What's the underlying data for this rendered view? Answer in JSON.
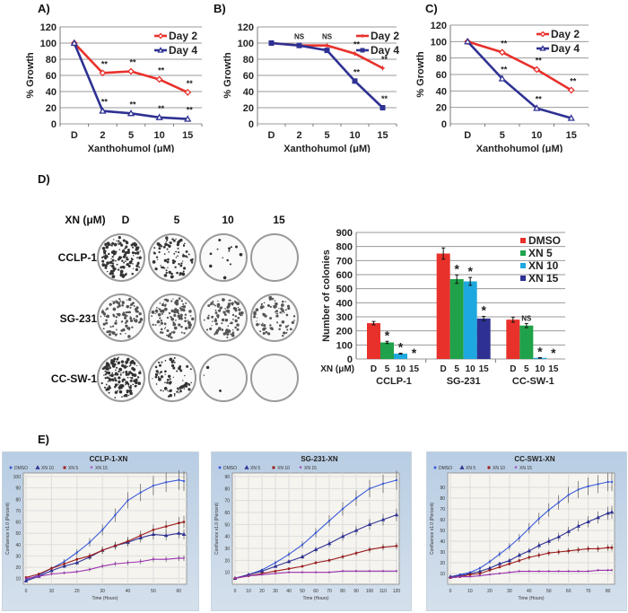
{
  "panel_labels": {
    "A": "A)",
    "B": "B)",
    "C": "C)",
    "D": "D)",
    "E": "E)"
  },
  "chart_data": [
    {
      "id": "A",
      "type": "line",
      "title": "",
      "xlabel": "Xanthohumol (μM)",
      "ylabel": "% Growth",
      "categories": [
        "D",
        "2",
        "5",
        "10",
        "15"
      ],
      "ylim": [
        0,
        120
      ],
      "yticks": [
        0,
        20,
        40,
        60,
        80,
        100,
        120
      ],
      "grid": true,
      "legend": "top-right",
      "series": [
        {
          "name": "Day 2",
          "color": "#e8312b",
          "marker": "diamond",
          "values": [
            100,
            63,
            65,
            55,
            39
          ],
          "annotations": [
            "",
            "**",
            "**",
            "**",
            "**"
          ]
        },
        {
          "name": "Day 4",
          "color": "#2e3192",
          "marker": "triangle",
          "values": [
            100,
            16,
            13,
            8,
            6
          ],
          "annotations": [
            "",
            "**",
            "**",
            "**",
            "**"
          ]
        }
      ]
    },
    {
      "id": "B",
      "type": "line",
      "title": "",
      "xlabel": "Xanthohumol (μM)",
      "ylabel": "% Growth",
      "categories": [
        "D",
        "2",
        "5",
        "10",
        "15"
      ],
      "ylim": [
        0,
        120
      ],
      "yticks": [
        0,
        20,
        40,
        60,
        80,
        100,
        120
      ],
      "grid": true,
      "legend": "top-right",
      "series": [
        {
          "name": "Day 2",
          "color": "#e8312b",
          "marker": "star",
          "values": [
            100,
            97,
            97,
            87,
            69
          ],
          "annotations": [
            "",
            "NS",
            "NS",
            "**",
            "**"
          ]
        },
        {
          "name": "Day 4",
          "color": "#2e3192",
          "marker": "square",
          "values": [
            100,
            97,
            91,
            53,
            20
          ],
          "annotations": [
            "",
            "",
            "",
            "**",
            "**"
          ]
        }
      ]
    },
    {
      "id": "C",
      "type": "line",
      "title": "",
      "xlabel": "Xanthohumol (μM)",
      "ylabel": "% Growth",
      "categories": [
        "D",
        "5",
        "10",
        "15"
      ],
      "ylim": [
        0,
        120
      ],
      "yticks": [
        0,
        20,
        40,
        60,
        80,
        100,
        120
      ],
      "grid": true,
      "legend": "top-right",
      "series": [
        {
          "name": "Day 2",
          "color": "#e8312b",
          "marker": "diamond",
          "values": [
            100,
            87,
            66,
            41
          ],
          "annotations": [
            "",
            "**",
            "**",
            "**"
          ]
        },
        {
          "name": "Day 4",
          "color": "#2e3192",
          "marker": "triangle",
          "values": [
            100,
            55,
            19,
            7
          ],
          "annotations": [
            "",
            "**",
            "**",
            ""
          ]
        }
      ]
    },
    {
      "id": "D-bar",
      "type": "bar",
      "title": "",
      "xlabel": "XN (μM)",
      "ylabel": "Number of colonies",
      "groups": [
        "CCLP-1",
        "SG-231",
        "CC-SW-1"
      ],
      "categories": [
        "D",
        "5",
        "10",
        "15"
      ],
      "ylim": [
        0,
        900
      ],
      "yticks": [
        0,
        100,
        200,
        300,
        400,
        500,
        600,
        700,
        800,
        900
      ],
      "grid": true,
      "legend": "top-right",
      "series": [
        {
          "name": "DMSO",
          "color": "#e8312b",
          "values": [
            255,
            750,
            280
          ],
          "errors": [
            12,
            40,
            18
          ],
          "annotations": [
            "",
            "",
            ""
          ]
        },
        {
          "name": "XN 5",
          "color": "#1fa24a",
          "values": [
            118,
            568,
            238
          ],
          "errors": [
            8,
            30,
            15
          ],
          "annotations": [
            "*",
            "*",
            "NS"
          ]
        },
        {
          "name": "XN 10",
          "color": "#1ea8e0",
          "values": [
            38,
            552,
            8
          ],
          "errors": [
            3,
            28,
            2
          ],
          "annotations": [
            "*",
            "*",
            "*"
          ]
        },
        {
          "name": "XN 15",
          "color": "#2e3192",
          "values": [
            0,
            288,
            0
          ],
          "errors": [
            0,
            15,
            0
          ],
          "annotations": [
            "*",
            "*",
            "*"
          ]
        }
      ]
    },
    {
      "id": "E1",
      "type": "line",
      "title": "CCLP-1-XN",
      "xlabel": "Time (Hours)",
      "ylabel": "Confluence v1.0 (Percent)",
      "xlim": [
        0,
        62
      ],
      "xticks": [
        0,
        10,
        20,
        30,
        40,
        50,
        60
      ],
      "ylim": [
        5,
        100
      ],
      "yticks": [
        10,
        20,
        30,
        40,
        50,
        60,
        70,
        80,
        90,
        100
      ],
      "grid": true,
      "legend": "top-left",
      "series": [
        {
          "name": "DMSO",
          "color": "#3b5bd9",
          "marker": "circle",
          "x": [
            0,
            5,
            10,
            15,
            20,
            25,
            30,
            35,
            40,
            45,
            50,
            55,
            60,
            62
          ],
          "values": [
            9,
            13,
            19,
            25,
            33,
            42,
            53,
            66,
            79,
            86,
            92,
            95,
            97,
            96
          ]
        },
        {
          "name": "XN 10",
          "color": "#2e3192",
          "marker": "triangle",
          "x": [
            0,
            5,
            10,
            15,
            20,
            25,
            30,
            35,
            40,
            45,
            50,
            55,
            60,
            62
          ],
          "values": [
            8,
            12,
            17,
            21,
            24,
            29,
            35,
            39,
            42,
            46,
            49,
            48,
            50,
            49
          ]
        },
        {
          "name": "XN 5",
          "color": "#9b1c1c",
          "marker": "square",
          "x": [
            0,
            5,
            10,
            15,
            20,
            25,
            30,
            35,
            40,
            45,
            50,
            55,
            60,
            62
          ],
          "values": [
            11,
            14,
            19,
            23,
            27,
            30,
            35,
            39,
            43,
            48,
            53,
            56,
            59,
            60
          ]
        },
        {
          "name": "XN 15",
          "color": "#9b30b0",
          "marker": "triangle-down",
          "x": [
            0,
            5,
            10,
            15,
            20,
            25,
            30,
            35,
            40,
            45,
            50,
            55,
            60,
            62
          ],
          "values": [
            10,
            12,
            14,
            15,
            16,
            18,
            21,
            23,
            24,
            25,
            27,
            27,
            28,
            28
          ]
        }
      ]
    },
    {
      "id": "E2",
      "type": "line",
      "title": "SG-231-XN",
      "xlabel": "Time (Hours)",
      "ylabel": "Confluence v1.0 (Percent)",
      "xlim": [
        0,
        120
      ],
      "xticks": [
        0,
        10,
        20,
        30,
        40,
        50,
        60,
        70,
        80,
        90,
        100,
        110,
        120
      ],
      "ylim": [
        0,
        90
      ],
      "yticks": [
        10,
        20,
        30,
        40,
        50,
        60,
        70,
        80,
        90
      ],
      "grid": true,
      "legend": "top-left",
      "series": [
        {
          "name": "DMSO",
          "color": "#3b5bd9",
          "marker": "circle",
          "x": [
            0,
            10,
            20,
            30,
            40,
            50,
            60,
            70,
            80,
            90,
            100,
            110,
            120
          ],
          "values": [
            5,
            8,
            12,
            18,
            25,
            33,
            43,
            53,
            63,
            72,
            80,
            84,
            87
          ]
        },
        {
          "name": "XN 5",
          "color": "#2e3192",
          "marker": "triangle",
          "x": [
            0,
            10,
            20,
            30,
            40,
            50,
            60,
            70,
            80,
            90,
            100,
            110,
            120
          ],
          "values": [
            5,
            8,
            11,
            15,
            19,
            23,
            29,
            34,
            40,
            45,
            50,
            54,
            58
          ]
        },
        {
          "name": "XN 10",
          "color": "#9b1c1c",
          "marker": "square",
          "x": [
            0,
            10,
            20,
            30,
            40,
            50,
            60,
            70,
            80,
            90,
            100,
            110,
            120
          ],
          "values": [
            5,
            7,
            9,
            11,
            13,
            15,
            18,
            20,
            23,
            26,
            29,
            31,
            32
          ]
        },
        {
          "name": "XN 15",
          "color": "#9b30b0",
          "marker": "triangle-down",
          "x": [
            0,
            10,
            20,
            30,
            40,
            50,
            60,
            70,
            80,
            90,
            100,
            110,
            120
          ],
          "values": [
            5,
            7,
            8,
            9,
            10,
            10,
            10,
            10,
            11,
            11,
            11,
            11,
            11
          ]
        }
      ]
    },
    {
      "id": "E3",
      "type": "line",
      "title": "CC-SW1-XN",
      "xlabel": "Time (Hours)",
      "ylabel": "Confluence v1.0 (Percent)",
      "xlim": [
        0,
        82
      ],
      "xticks": [
        0,
        10,
        20,
        30,
        40,
        50,
        60,
        70,
        80
      ],
      "ylim": [
        0,
        100
      ],
      "yticks": [
        10,
        20,
        30,
        40,
        50,
        60,
        70,
        80,
        90
      ],
      "grid": true,
      "legend": "top-left",
      "series": [
        {
          "name": "DMSO",
          "color": "#3b5bd9",
          "marker": "circle",
          "x": [
            0,
            5,
            10,
            15,
            20,
            25,
            30,
            35,
            40,
            45,
            50,
            55,
            60,
            65,
            70,
            75,
            80,
            82
          ],
          "values": [
            7,
            9,
            11,
            15,
            21,
            28,
            35,
            43,
            52,
            61,
            69,
            76,
            83,
            88,
            91,
            93,
            95,
            95
          ]
        },
        {
          "name": "XN 5",
          "color": "#2e3192",
          "marker": "triangle",
          "x": [
            0,
            5,
            10,
            15,
            20,
            25,
            30,
            35,
            40,
            45,
            50,
            55,
            60,
            65,
            70,
            75,
            80,
            82
          ],
          "values": [
            7,
            8,
            10,
            12,
            15,
            19,
            22,
            27,
            31,
            36,
            40,
            44,
            49,
            54,
            58,
            62,
            66,
            67
          ]
        },
        {
          "name": "XN 10",
          "color": "#9b1c1c",
          "marker": "square",
          "x": [
            0,
            5,
            10,
            15,
            20,
            25,
            30,
            35,
            40,
            45,
            50,
            55,
            60,
            65,
            70,
            75,
            80,
            82
          ],
          "values": [
            6,
            7,
            9,
            10,
            13,
            16,
            19,
            22,
            25,
            27,
            29,
            30,
            31,
            32,
            33,
            33,
            34,
            34
          ]
        },
        {
          "name": "XN 15",
          "color": "#9b30b0",
          "marker": "triangle-down",
          "x": [
            0,
            5,
            10,
            15,
            20,
            25,
            30,
            35,
            40,
            45,
            50,
            55,
            60,
            65,
            70,
            75,
            80,
            82
          ],
          "values": [
            6,
            7,
            7,
            8,
            9,
            10,
            11,
            12,
            12,
            12,
            12,
            12,
            12,
            12,
            12,
            13,
            13,
            13
          ]
        }
      ]
    }
  ],
  "plates": {
    "header_label": "XN (μM)",
    "columns": [
      "D",
      "5",
      "10",
      "15"
    ],
    "rows": [
      {
        "label": "CCLP-1",
        "density": [
          0.9,
          0.55,
          0.08,
          0.0
        ]
      },
      {
        "label": "SG-231",
        "density": [
          0.7,
          0.7,
          0.65,
          0.5
        ]
      },
      {
        "label": "CC-SW-1",
        "density": [
          0.95,
          0.45,
          0.02,
          0.0
        ]
      }
    ]
  }
}
